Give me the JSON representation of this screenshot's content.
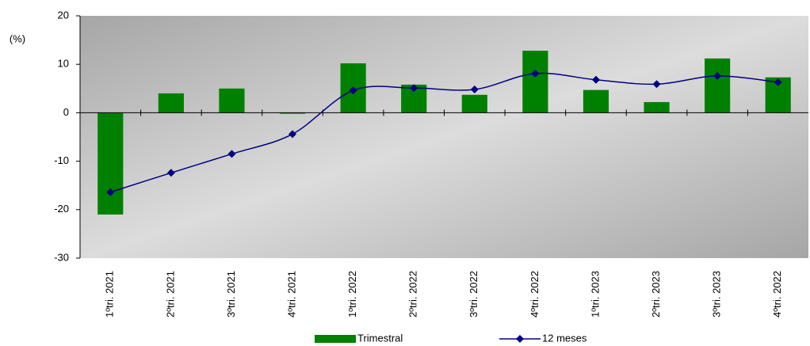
{
  "chart_data": {
    "type": "bar-line",
    "y_label": "(%)",
    "categories": [
      "1ºtri. 2021",
      "2ºtri. 2021",
      "3ºtri. 2021",
      "4ºtri. 2021",
      "1ºtri. 2022",
      "2ºtri. 2022",
      "3ºtri. 2022",
      "4ºtri. 2022",
      "1ºtri. 2023",
      "2ºtri. 2023",
      "3ºtri. 2023",
      "4ºtri. 2022"
    ],
    "series": [
      {
        "name": "Trimestral",
        "type": "bar",
        "color": "#008000",
        "values": [
          -21,
          4,
          5,
          -0.2,
          10.2,
          5.8,
          3.7,
          12.8,
          4.7,
          2.2,
          11.2,
          7.3
        ]
      },
      {
        "name": "12 meses",
        "type": "line",
        "color": "#000080",
        "values": [
          -16.4,
          -12.4,
          -8.5,
          -4.4,
          4.6,
          5.1,
          4.8,
          8.1,
          6.8,
          5.9,
          7.6,
          6.3
        ]
      }
    ],
    "ylim": [
      -30,
      20
    ],
    "yticks": [
      -30,
      -20,
      -10,
      0,
      10,
      20
    ]
  }
}
